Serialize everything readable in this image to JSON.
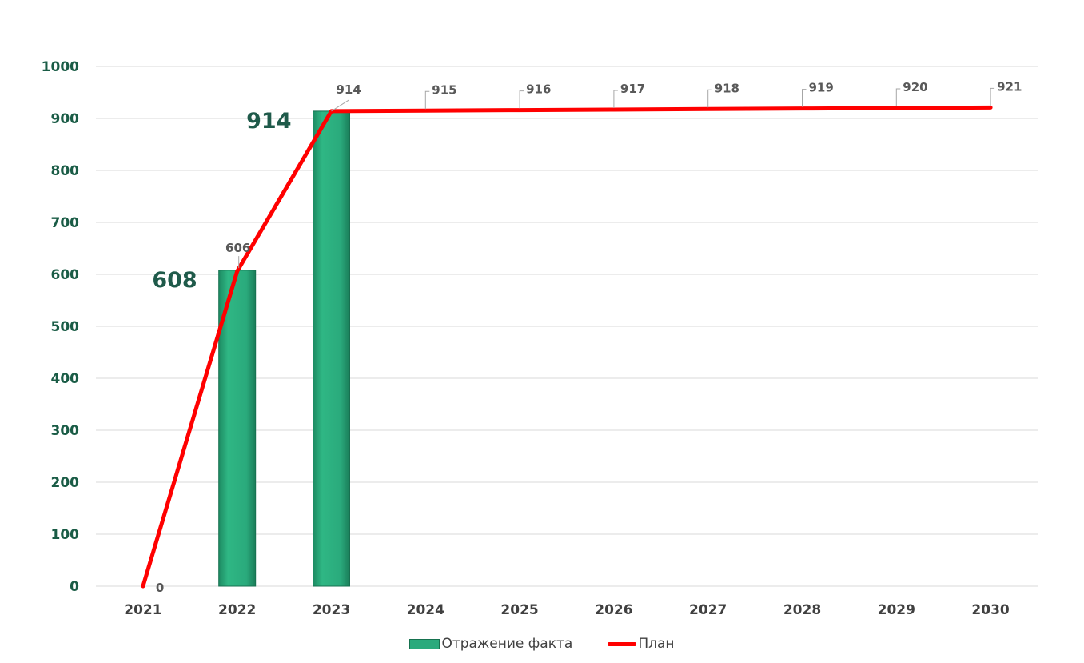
{
  "chart_data": {
    "type": "bar",
    "title": "",
    "xlabel": "",
    "ylabel": "",
    "categories": [
      "2021",
      "2022",
      "2023",
      "2024",
      "2025",
      "2026",
      "2027",
      "2028",
      "2029",
      "2030"
    ],
    "ylim": [
      0,
      1000
    ],
    "yticks": [
      0,
      100,
      200,
      300,
      400,
      500,
      600,
      700,
      800,
      900,
      1000
    ],
    "grid": true,
    "legend_position": "bottom",
    "series": [
      {
        "name": "Отражение факта",
        "type": "bar",
        "color": "#2aaa7c",
        "values": [
          0,
          608,
          914,
          null,
          null,
          null,
          null,
          null,
          null,
          null
        ],
        "data_labels": [
          "",
          "608",
          "914",
          "",
          "",
          "",
          "",
          "",
          "",
          ""
        ]
      },
      {
        "name": "План",
        "type": "line",
        "color": "#ff0000",
        "values": [
          0,
          606,
          914,
          915,
          916,
          917,
          918,
          919,
          920,
          921
        ],
        "data_labels": [
          "0",
          "606",
          "914",
          "915",
          "916",
          "917",
          "918",
          "919",
          "920",
          "921"
        ]
      }
    ],
    "colors": {
      "axis_text": "#1a5c46",
      "fact_label": "#1f5a4a",
      "plan_label": "#595959",
      "gridline": "#d9d9d9",
      "leader": "#a6a6a6"
    }
  },
  "legend": {
    "bar_label": "Отражение факта",
    "line_label": "План"
  }
}
